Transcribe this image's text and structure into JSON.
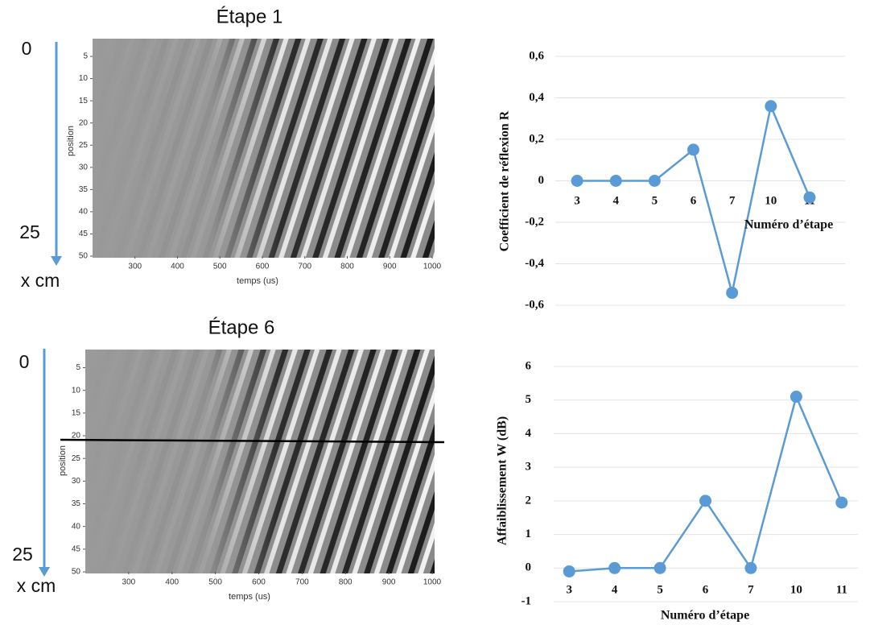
{
  "chart_data": [
    {
      "type": "image",
      "title": "Étape 1",
      "xlabel": "temps (us)",
      "ylabel": "position",
      "xlim": [
        200,
        1000
      ],
      "ylim": [
        1,
        50
      ],
      "y_inverted": true,
      "xticks": [
        300,
        400,
        500,
        600,
        700,
        800,
        900,
        1000
      ],
      "yticks": [
        5,
        10,
        15,
        20,
        25,
        30,
        35,
        40,
        45,
        50
      ],
      "annotations": [
        "0",
        "25",
        "x cm"
      ],
      "arrow_color": "#5b9bd5"
    },
    {
      "type": "image",
      "title": "Étape 6",
      "xlabel": "temps (us)",
      "ylabel": "position",
      "xlim": [
        200,
        1000
      ],
      "ylim": [
        1,
        50
      ],
      "y_inverted": true,
      "xticks": [
        300,
        400,
        500,
        600,
        700,
        800,
        900,
        1000
      ],
      "yticks": [
        5,
        10,
        15,
        20,
        25,
        30,
        35,
        40,
        45,
        50
      ],
      "annotations": [
        "0",
        "25",
        "x cm"
      ],
      "arrow_color": "#5b9bd5"
    },
    {
      "type": "line",
      "xlabel": "Numéro d’étape",
      "ylabel": "Coefficient  de réflexion R",
      "categories": [
        "3",
        "4",
        "5",
        "6",
        "7",
        "10",
        "11"
      ],
      "values": [
        0,
        0,
        0,
        0.15,
        -0.54,
        0.36,
        -0.08
      ],
      "color": "#5b9bd5",
      "ylim": [
        -0.6,
        0.6
      ],
      "yticks": [
        {
          "value": -0.6,
          "label": "-0,6"
        },
        {
          "value": -0.4,
          "label": "-0,4"
        },
        {
          "value": -0.2,
          "label": "-0,2"
        },
        0,
        {
          "value": 0.2,
          "label": "0,2"
        },
        {
          "value": 0.4,
          "label": "0,4"
        },
        {
          "value": 0.6,
          "label": "0,6"
        }
      ],
      "grid": true
    },
    {
      "type": "line",
      "xlabel": "Numéro d’étape",
      "ylabel": "Affaiblissement W (dB)",
      "categories": [
        "3",
        "4",
        "5",
        "6",
        "7",
        "10",
        "11"
      ],
      "values": [
        -0.1,
        0,
        0,
        2,
        0,
        5.1,
        1.95
      ],
      "color": "#5b9bd5",
      "ylim": [
        -1,
        6
      ],
      "yticks": [
        -1,
        0,
        1,
        2,
        3,
        4,
        5,
        6
      ],
      "grid": true
    }
  ]
}
